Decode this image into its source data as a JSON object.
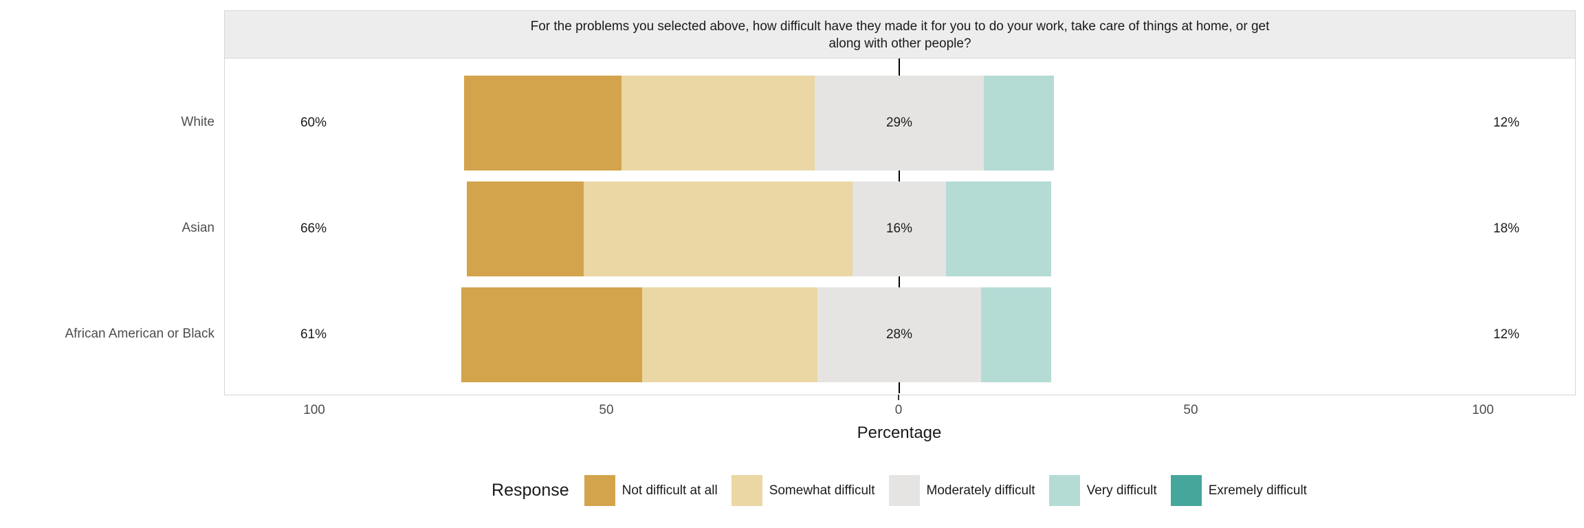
{
  "chart_data": {
    "type": "bar",
    "subtype": "diverging-stacked-likert",
    "title": "For the problems you selected above, how difficult have they made it for you to do your work, take care of things at home, or get along with other people?",
    "xlabel": "Percentage",
    "legend_title": "Response",
    "legend_position": "bottom",
    "x_tick_labels": [
      "100",
      "50",
      "0",
      "50",
      "100"
    ],
    "x_tick_values": [
      -100,
      -50,
      0,
      50,
      100
    ],
    "xlim": [
      -115,
      115
    ],
    "zero_reference_line": true,
    "neutral_index": 2,
    "responses": [
      {
        "label": "Not difficult at all",
        "color": "#d3a44c"
      },
      {
        "label": "Somewhat difficult",
        "color": "#ead7a4"
      },
      {
        "label": "Moderately difficult",
        "color": "#e5e4e2"
      },
      {
        "label": "Very difficult",
        "color": "#b5dbd5"
      },
      {
        "label": "Exremely difficult",
        "color": "#45a79c"
      }
    ],
    "rows": [
      {
        "category": "White",
        "values": [
          27,
          33,
          29,
          12,
          0
        ],
        "left_label": "60%",
        "mid_label": "29%",
        "right_label": "12%"
      },
      {
        "category": "Asian",
        "values": [
          20,
          46,
          16,
          18,
          0
        ],
        "left_label": "66%",
        "mid_label": "16%",
        "right_label": "18%"
      },
      {
        "category": "African American or Black",
        "values": [
          31,
          30,
          28,
          12,
          0
        ],
        "left_label": "61%",
        "mid_label": "28%",
        "right_label": "12%"
      }
    ]
  }
}
